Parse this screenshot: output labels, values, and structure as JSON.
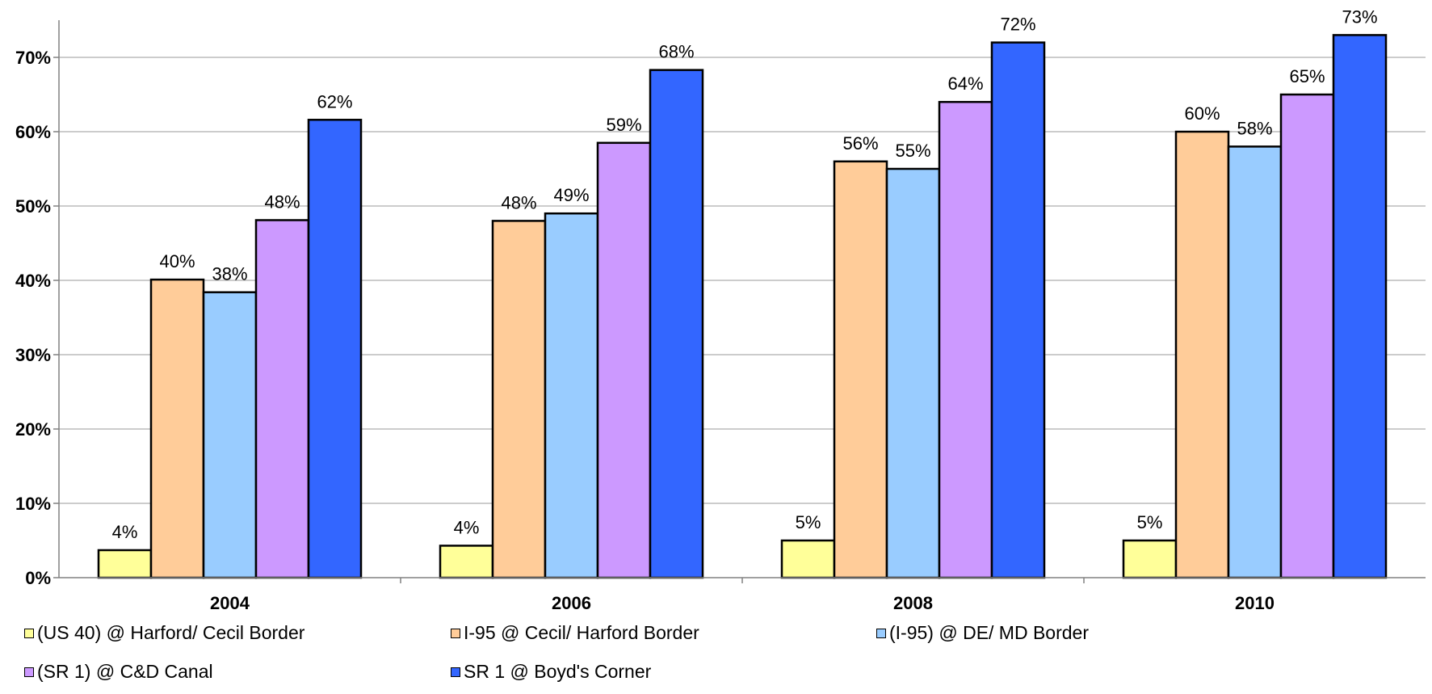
{
  "chart_data": {
    "type": "bar",
    "categories": [
      "2004",
      "2006",
      "2008",
      "2010"
    ],
    "ylim": [
      0,
      75
    ],
    "yticks": [
      0,
      10,
      20,
      30,
      40,
      50,
      60,
      70
    ],
    "ytick_labels": [
      "0%",
      "10%",
      "20%",
      "30%",
      "40%",
      "50%",
      "60%",
      "70%"
    ],
    "grid": true,
    "legend_position": "bottom",
    "series": [
      {
        "name": "(US 40) @ Harford/ Cecil Border",
        "color": "#FFFF99",
        "values": [
          3.7,
          4.3,
          5.0,
          5.0
        ],
        "labels": [
          "4%",
          "4%",
          "5%",
          "5%"
        ]
      },
      {
        "name": "I-95 @ Cecil/ Harford Border",
        "color": "#FFCC99",
        "values": [
          40.1,
          48.0,
          56.0,
          60.0
        ],
        "labels": [
          "40%",
          "48%",
          "56%",
          "60%"
        ]
      },
      {
        "name": "(I-95) @ DE/ MD Border",
        "color": "#99CCFF",
        "values": [
          38.4,
          49.0,
          55.0,
          58.0
        ],
        "labels": [
          "38%",
          "49%",
          "55%",
          "58%"
        ]
      },
      {
        "name": "(SR 1) @ C&D Canal",
        "color": "#CC99FF",
        "values": [
          48.1,
          58.5,
          64.0,
          65.0
        ],
        "labels": [
          "48%",
          "59%",
          "64%",
          "65%"
        ]
      },
      {
        "name": "SR 1 @ Boyd's Corner",
        "color": "#3366FF",
        "values": [
          61.6,
          68.3,
          72.0,
          73.0
        ],
        "labels": [
          "62%",
          "68%",
          "72%",
          "73%"
        ]
      }
    ]
  }
}
